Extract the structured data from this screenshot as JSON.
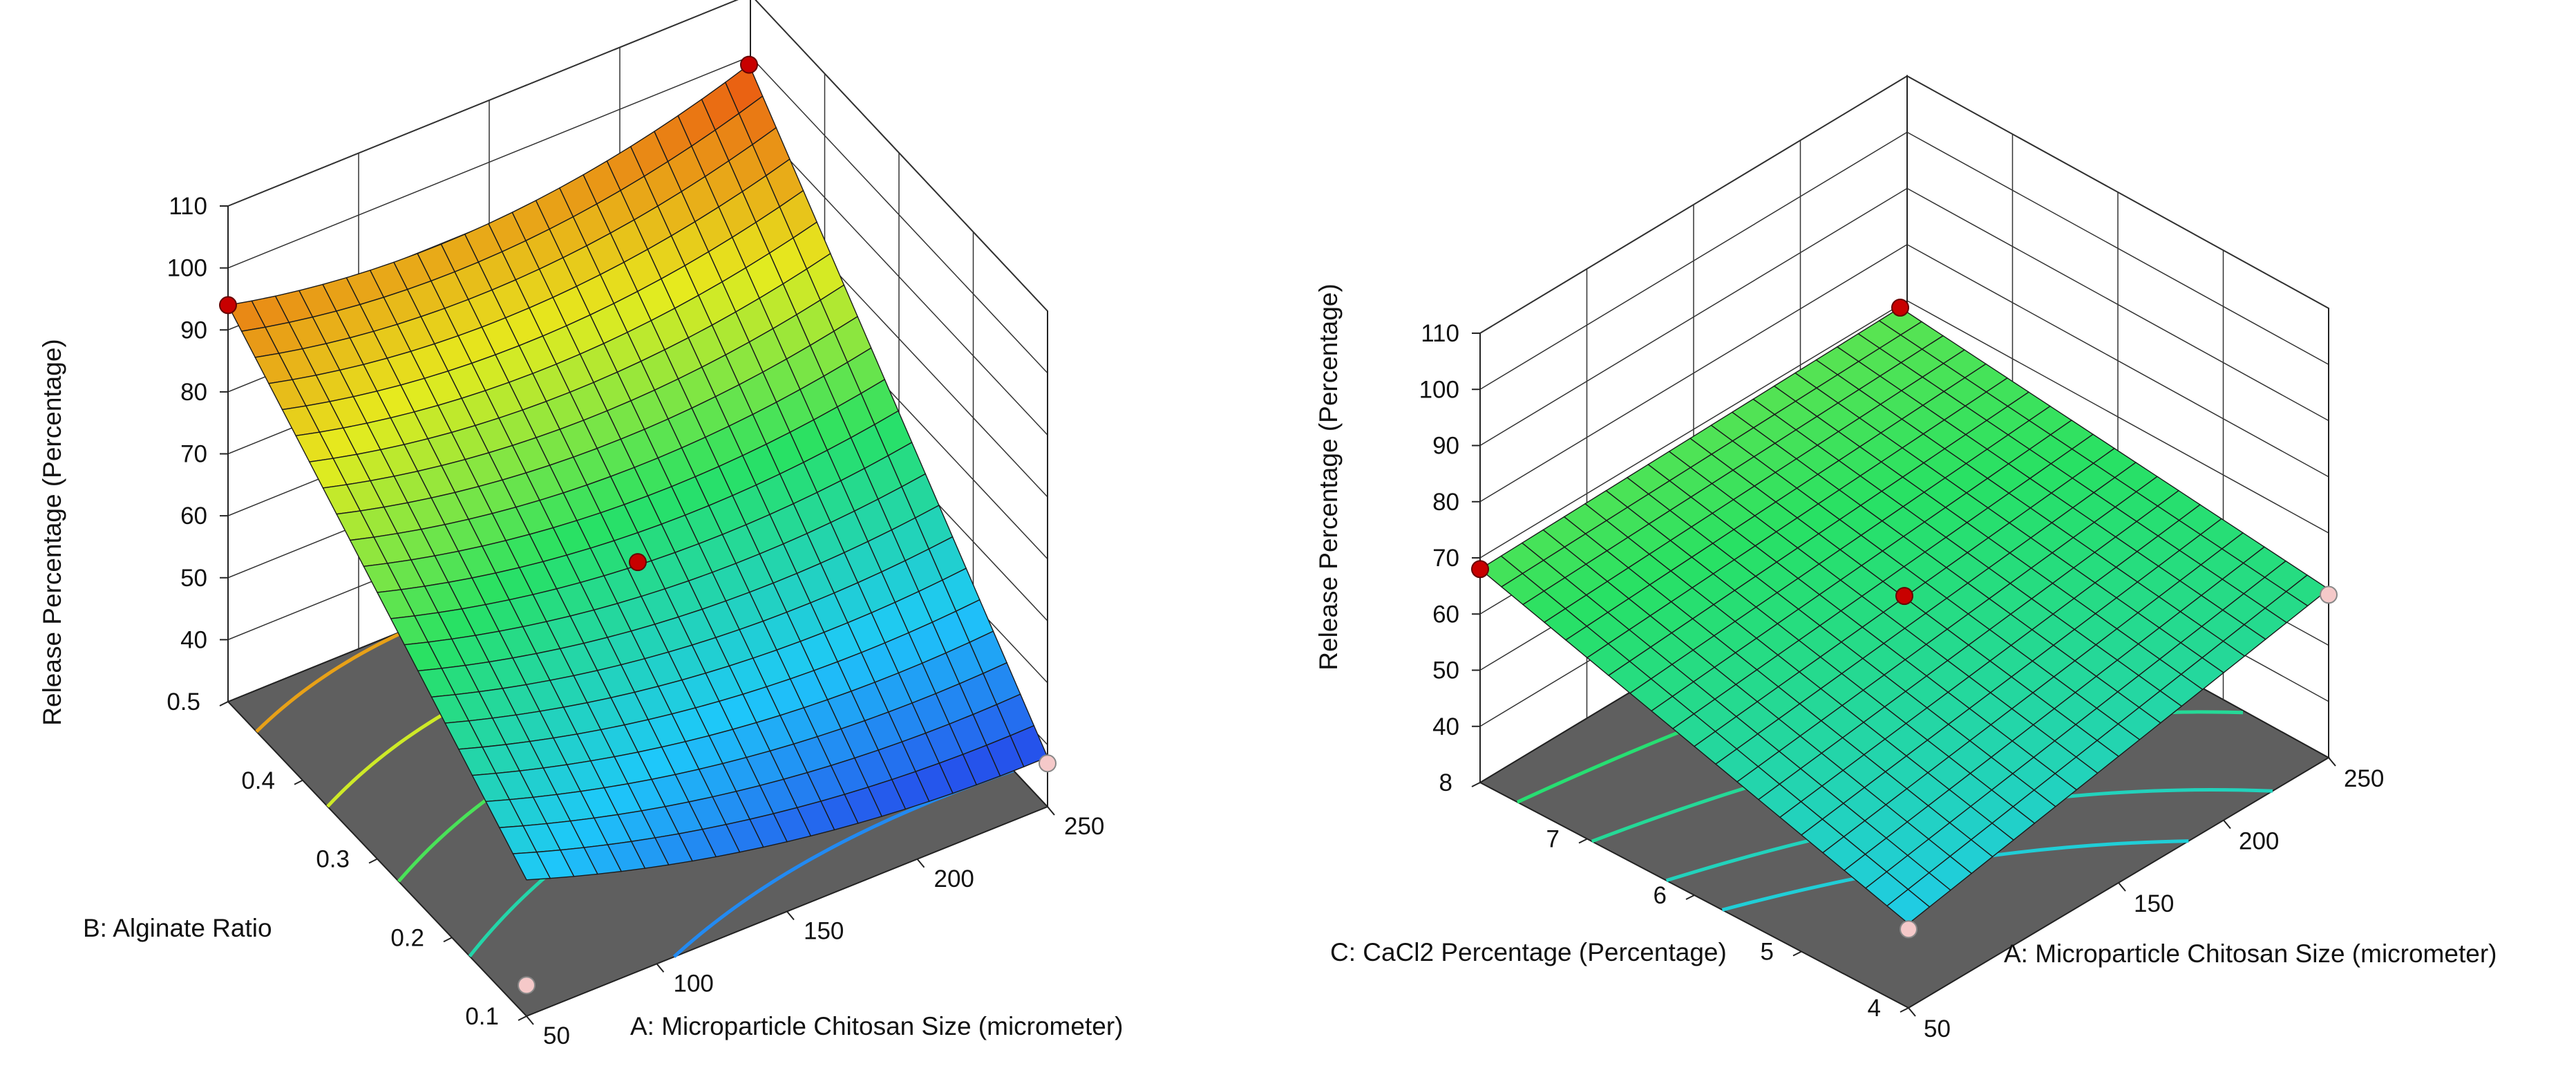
{
  "chart_data": [
    {
      "type": "surface3d",
      "title": "",
      "zlabel": "Release Percentage (Percentage)",
      "xlabel": "A: Microparticle Chitosan Size (micrometer)",
      "ylabel": "B: Alginate Ratio",
      "z_ticks": [
        "40",
        "50",
        "60",
        "70",
        "80",
        "90",
        "100",
        "110"
      ],
      "x_ticks": [
        "50",
        "100",
        "150",
        "200",
        "250"
      ],
      "y_ticks": [
        "0.1",
        "0.2",
        "0.3",
        "0.4",
        "0.5"
      ],
      "zlim": [
        30,
        110
      ],
      "xlim": [
        50,
        250
      ],
      "ylim": [
        0.1,
        0.5
      ],
      "corner_values": {
        "x50_y01": 52,
        "x250_y01": 38,
        "x50_y05": 94,
        "x250_y05": 99
      },
      "curvature_x": 25,
      "design_points": [
        {
          "x": 50,
          "y": 0.5,
          "z": 94,
          "kind": "above"
        },
        {
          "x": 250,
          "y": 0.5,
          "z": 99,
          "kind": "above"
        },
        {
          "x": 150,
          "y": 0.3,
          "z": 61,
          "kind": "above"
        },
        {
          "x": 250,
          "y": 0.1,
          "z": 38,
          "kind": "below"
        },
        {
          "x": 50,
          "y": 0.1,
          "z": 35,
          "kind": "below"
        }
      ],
      "contour_levels": [
        45,
        60,
        70,
        80,
        90
      ]
    },
    {
      "type": "surface3d",
      "title": "",
      "zlabel": "Release Percentage (Percentage)",
      "xlabel": "A: Microparticle Chitosan Size (micrometer)",
      "ylabel": "C: CaCl2 Percentage (Percentage)",
      "z_ticks": [
        "40",
        "50",
        "60",
        "70",
        "80",
        "90",
        "100",
        "110"
      ],
      "x_ticks": [
        "50",
        "150",
        "200",
        "250"
      ],
      "y_ticks": [
        "4",
        "5",
        "6",
        "7",
        "8"
      ],
      "zlim": [
        30,
        110
      ],
      "xlim": [
        50,
        250
      ],
      "ylim": [
        4,
        8
      ],
      "corner_values": {
        "x50_y8": 68,
        "x250_y8": 70,
        "x50_y4": 45,
        "x250_y4": 60
      },
      "curvature_x": 0,
      "design_points": [
        {
          "x": 50,
          "y": 8,
          "z": 68,
          "kind": "above"
        },
        {
          "x": 250,
          "y": 8,
          "z": 70,
          "kind": "above"
        },
        {
          "x": 150,
          "y": 6,
          "z": 61,
          "kind": "above"
        },
        {
          "x": 250,
          "y": 4,
          "z": 60,
          "kind": "below"
        },
        {
          "x": 50,
          "y": 4,
          "z": 45,
          "kind": "below"
        }
      ],
      "contour_levels": [
        55,
        58,
        62,
        66
      ]
    }
  ]
}
